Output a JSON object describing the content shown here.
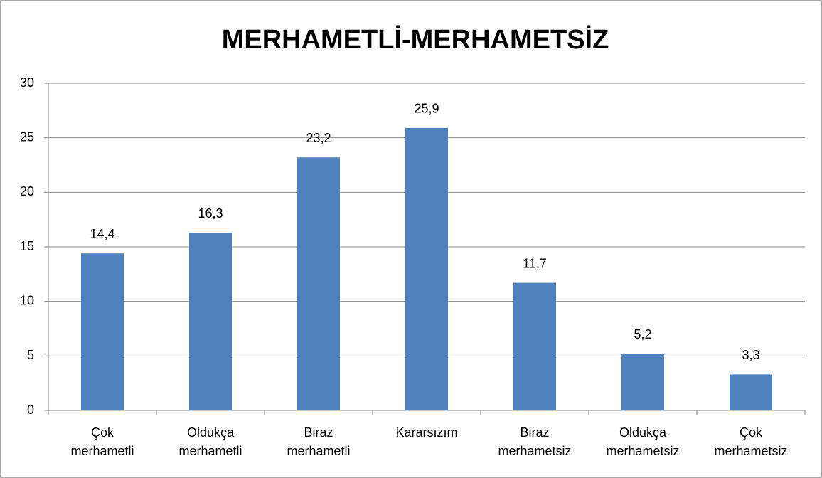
{
  "chart_data": {
    "type": "bar",
    "title": "MERHAMETLİ-MERHAMETSİZ",
    "categories": [
      "Çok merhametli",
      "Oldukça merhametli",
      "Biraz merhametli",
      "Kararsızım",
      "Biraz merhametsiz",
      "Oldukça merhametsiz",
      "Çok merhametsiz"
    ],
    "values": [
      14.4,
      16.3,
      23.2,
      25.9,
      11.7,
      5.2,
      3.3
    ],
    "value_labels": [
      "14,4",
      "16,3",
      "23,2",
      "25,9",
      "11,7",
      "5,2",
      "3,3"
    ],
    "color": "#4f81bd",
    "ylim": [
      0,
      30
    ],
    "yticks": [
      0,
      5,
      10,
      15,
      20,
      25,
      30
    ],
    "grid": true
  }
}
